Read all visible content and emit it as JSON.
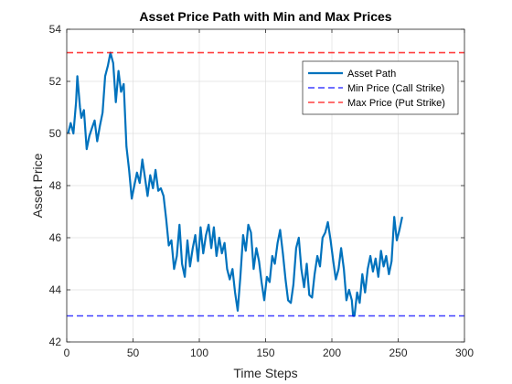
{
  "chart_data": {
    "type": "line",
    "title": "Asset Price Path with Min and Max Prices",
    "xlabel": "Time Steps",
    "ylabel": "Asset Price",
    "xlim": [
      0,
      300
    ],
    "ylim": [
      42,
      54
    ],
    "xticks": [
      0,
      50,
      100,
      150,
      200,
      250,
      300
    ],
    "yticks": [
      42,
      44,
      46,
      48,
      50,
      52,
      54
    ],
    "grid": true,
    "legend_position": "top-right",
    "series": [
      {
        "name": "Asset Path",
        "color": "#0072BD",
        "style": "solid",
        "x": [
          1,
          3,
          5,
          7,
          8,
          10,
          11,
          13,
          15,
          17,
          19,
          21,
          23,
          25,
          27,
          29,
          31,
          33,
          34,
          35,
          37,
          39,
          41,
          43,
          45,
          47,
          49,
          51,
          53,
          55,
          57,
          59,
          61,
          63,
          65,
          67,
          69,
          71,
          73,
          75,
          77,
          79,
          81,
          83,
          85,
          87,
          89,
          91,
          93,
          95,
          97,
          99,
          101,
          103,
          105,
          107,
          109,
          111,
          113,
          115,
          117,
          119,
          121,
          123,
          125,
          127,
          129,
          131,
          133,
          135,
          137,
          139,
          141,
          143,
          145,
          147,
          149,
          151,
          153,
          155,
          157,
          159,
          161,
          163,
          165,
          167,
          169,
          171,
          173,
          175,
          177,
          179,
          181,
          183,
          185,
          187,
          189,
          191,
          193,
          195,
          197,
          199,
          201,
          203,
          205,
          207,
          209,
          211,
          213,
          215,
          216,
          217,
          219,
          221,
          223,
          225,
          227,
          229,
          231,
          233,
          235,
          237,
          239,
          241,
          243,
          245,
          247,
          249,
          251,
          253
        ],
        "y": [
          50.0,
          50.4,
          50.0,
          51.2,
          52.2,
          51.0,
          50.6,
          50.9,
          49.4,
          49.9,
          50.2,
          50.5,
          49.7,
          50.3,
          50.8,
          52.2,
          52.6,
          53.1,
          52.9,
          52.7,
          51.2,
          52.4,
          51.6,
          51.9,
          49.5,
          48.6,
          47.5,
          48.0,
          48.5,
          48.1,
          49.0,
          48.3,
          47.6,
          48.4,
          47.9,
          48.6,
          47.8,
          47.9,
          47.6,
          46.7,
          45.7,
          45.9,
          44.8,
          45.3,
          46.5,
          45.0,
          44.5,
          45.9,
          44.9,
          45.6,
          46.1,
          45.1,
          46.4,
          45.4,
          46.1,
          46.5,
          45.6,
          46.4,
          45.3,
          46.0,
          45.4,
          45.8,
          44.8,
          44.4,
          44.8,
          43.9,
          43.2,
          44.5,
          46.1,
          45.5,
          46.5,
          46.2,
          44.8,
          45.6,
          45.1,
          44.3,
          43.6,
          44.5,
          44.3,
          45.3,
          45.0,
          45.8,
          46.3,
          45.4,
          44.4,
          43.6,
          43.5,
          44.2,
          45.6,
          46.0,
          44.8,
          44.1,
          45.0,
          43.8,
          43.7,
          44.6,
          45.3,
          44.9,
          46.0,
          46.2,
          46.6,
          45.9,
          45.1,
          44.4,
          44.8,
          45.6,
          44.8,
          43.6,
          44.0,
          43.6,
          43.0,
          43.0,
          43.9,
          43.5,
          44.6,
          43.9,
          44.8,
          45.3,
          44.7,
          45.2,
          44.5,
          45.5,
          44.9,
          45.3,
          44.6,
          45.1,
          46.8,
          45.9,
          46.3,
          46.8
        ]
      },
      {
        "name": "Min Price (Call Strike)",
        "color": "#0000FF",
        "style": "dashed",
        "x": [
          0,
          300
        ],
        "y": [
          43.0,
          43.0
        ]
      },
      {
        "name": "Max Price (Put Strike)",
        "color": "#FF0000",
        "style": "dashed",
        "x": [
          0,
          300
        ],
        "y": [
          53.1,
          53.1
        ]
      }
    ]
  }
}
